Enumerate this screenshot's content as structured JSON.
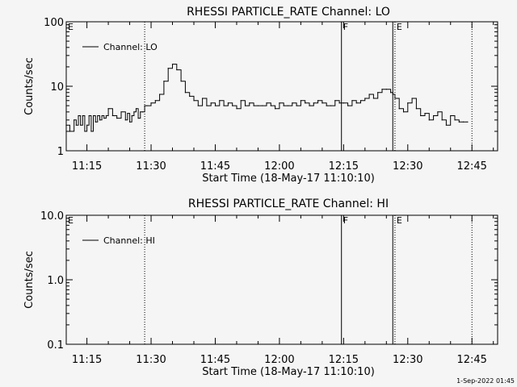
{
  "footer": {
    "timestamp": "1-Sep-2022 01:45"
  },
  "chart_data": [
    {
      "type": "line",
      "title": "RHESSI PARTICLE_RATE Channel: LO",
      "xlabel": "Start Time (18-May-17 11:10:10)",
      "ylabel": "Counts/sec",
      "y_scale": "log",
      "ylim": [
        1,
        100
      ],
      "xlim": [
        "11:10:10",
        "12:51:00"
      ],
      "x_ticks": [
        "11:15",
        "11:30",
        "11:45",
        "12:00",
        "12:15",
        "12:30",
        "12:45"
      ],
      "y_ticks": [
        "1",
        "10",
        "100"
      ],
      "legend": {
        "placement": "top-left",
        "entries": [
          "Channel: LO"
        ]
      },
      "markers": [
        {
          "label": "E",
          "time": "11:10:10",
          "style": "dotted"
        },
        {
          "label": "",
          "time": "11:28:30",
          "style": "dotted"
        },
        {
          "label": "F",
          "time": "12:14:30",
          "style": "solid"
        },
        {
          "label": "",
          "time": "12:26:30",
          "style": "solid"
        },
        {
          "label": "E",
          "time": "12:27:00",
          "style": "dotted"
        },
        {
          "label": "",
          "time": "12:45:00",
          "style": "dotted"
        }
      ],
      "series": [
        {
          "name": "Channel: LO",
          "time": [
            "11:10:10",
            "11:11:00",
            "11:12:00",
            "11:12:30",
            "11:13:00",
            "11:13:30",
            "11:14:00",
            "11:14:30",
            "11:15:00",
            "11:15:30",
            "11:16:00",
            "11:16:30",
            "11:17:00",
            "11:17:30",
            "11:18:00",
            "11:18:30",
            "11:19:00",
            "11:19:30",
            "11:20:00",
            "11:21:00",
            "11:22:00",
            "11:23:00",
            "11:24:00",
            "11:24:30",
            "11:25:00",
            "11:25:30",
            "11:26:00",
            "11:26:30",
            "11:27:00",
            "11:27:30",
            "11:28:00",
            "11:28:30",
            "11:29:00",
            "11:30:00",
            "11:31:00",
            "11:32:00",
            "11:33:00",
            "11:34:00",
            "11:35:00",
            "11:36:00",
            "11:37:00",
            "11:38:00",
            "11:39:00",
            "11:40:00",
            "11:41:00",
            "11:42:00",
            "11:43:00",
            "11:44:00",
            "11:45:00",
            "11:46:00",
            "11:47:00",
            "11:48:00",
            "11:49:00",
            "11:50:00",
            "11:51:00",
            "11:52:00",
            "11:53:00",
            "11:54:00",
            "11:55:00",
            "11:56:00",
            "11:57:00",
            "11:58:00",
            "11:59:00",
            "12:00:00",
            "12:01:00",
            "12:02:00",
            "12:03:00",
            "12:04:00",
            "12:05:00",
            "12:06:00",
            "12:07:00",
            "12:08:00",
            "12:09:00",
            "12:10:00",
            "12:11:00",
            "12:12:00",
            "12:13:00",
            "12:14:00",
            "12:15:00",
            "12:16:00",
            "12:17:00",
            "12:18:00",
            "12:19:00",
            "12:20:00",
            "12:21:00",
            "12:22:00",
            "12:23:00",
            "12:24:00",
            "12:25:00",
            "12:26:00",
            "12:26:30",
            "12:27:00",
            "12:28:00",
            "12:29:00",
            "12:30:00",
            "12:31:00",
            "12:32:00",
            "12:33:00",
            "12:34:00",
            "12:35:00",
            "12:36:00",
            "12:37:00",
            "12:38:00",
            "12:39:00",
            "12:40:00",
            "12:41:00",
            "12:42:00",
            "12:43:00",
            "12:44:00"
          ],
          "values": [
            2.5,
            2.0,
            3.0,
            2.5,
            3.5,
            2.5,
            3.5,
            2.0,
            2.5,
            3.5,
            2.0,
            3.5,
            2.8,
            3.5,
            3.0,
            3.5,
            3.2,
            3.5,
            4.5,
            3.5,
            3.2,
            4.0,
            3.0,
            3.8,
            2.8,
            3.5,
            4.0,
            4.5,
            3.2,
            4.0,
            4.0,
            5.0,
            5.0,
            5.5,
            6.0,
            7.5,
            12.0,
            19.0,
            22.0,
            18.0,
            12.0,
            8.0,
            7.0,
            6.0,
            5.0,
            6.5,
            5.0,
            5.5,
            5.0,
            6.0,
            5.0,
            5.5,
            5.0,
            4.5,
            6.0,
            5.0,
            5.5,
            5.0,
            5.0,
            5.0,
            5.5,
            5.0,
            4.5,
            5.5,
            5.0,
            5.0,
            5.5,
            5.0,
            6.0,
            5.5,
            5.0,
            5.5,
            6.0,
            5.5,
            5.0,
            5.0,
            6.0,
            5.5,
            5.5,
            5.0,
            6.0,
            5.5,
            6.0,
            6.5,
            7.5,
            6.5,
            8.0,
            9.0,
            9.0,
            8.0,
            7.5,
            6.5,
            4.5,
            4.0,
            5.5,
            6.5,
            4.5,
            3.5,
            3.8,
            3.0,
            3.5,
            4.0,
            3.0,
            2.5,
            3.5,
            3.0,
            2.8,
            2.8,
            2.8
          ]
        }
      ]
    },
    {
      "type": "line",
      "title": "RHESSI PARTICLE_RATE Channel: HI",
      "xlabel": "Start Time (18-May-17 11:10:10)",
      "ylabel": "Counts/sec",
      "y_scale": "log",
      "ylim": [
        0.1,
        10
      ],
      "xlim": [
        "11:10:10",
        "12:51:00"
      ],
      "x_ticks": [
        "11:15",
        "11:30",
        "11:45",
        "12:00",
        "12:15",
        "12:30",
        "12:45"
      ],
      "y_ticks": [
        "0.1",
        "1.0",
        "10.0"
      ],
      "legend": {
        "placement": "top-left",
        "entries": [
          "Channel: HI"
        ]
      },
      "markers": [
        {
          "label": "E",
          "time": "11:10:10",
          "style": "dotted"
        },
        {
          "label": "",
          "time": "11:28:30",
          "style": "dotted"
        },
        {
          "label": "F",
          "time": "12:14:30",
          "style": "solid"
        },
        {
          "label": "",
          "time": "12:26:30",
          "style": "solid"
        },
        {
          "label": "E",
          "time": "12:27:00",
          "style": "dotted"
        },
        {
          "label": "",
          "time": "12:45:00",
          "style": "dotted"
        }
      ],
      "series": [
        {
          "name": "Channel: HI",
          "time": [],
          "values": []
        }
      ]
    }
  ]
}
